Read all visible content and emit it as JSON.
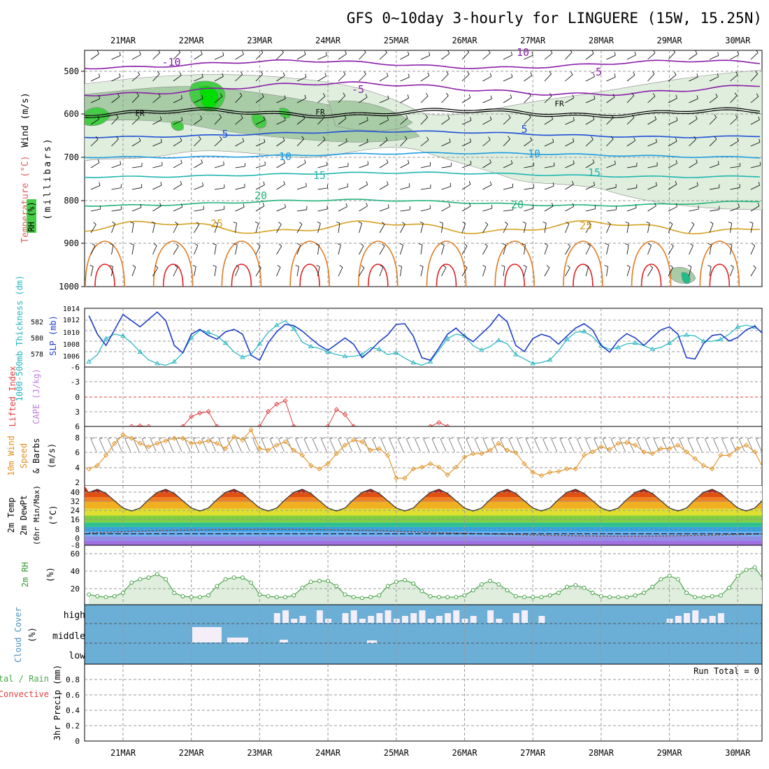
{
  "title": "GFS 0~10day 3-hourly for LINGUERE (15W, 15.25N)",
  "dates": [
    "21MAR",
    "22MAR",
    "23MAR",
    "24MAR",
    "25MAR",
    "26MAR",
    "27MAR",
    "28MAR",
    "29MAR",
    "30MAR"
  ],
  "colors": {
    "wind_barb": "#000000",
    "rh_light": "#dfeedd",
    "rh_mid": "#a8cca6",
    "rh_dark": "#7aa67a",
    "rh_green": "#44cc44",
    "rh_bright": "#00dd00",
    "freezing": "#000000",
    "temp_m10": "#8a1ea8",
    "temp_m5": "#8a1ea8",
    "temp_5": "#1e4fd6",
    "temp_10": "#1e9be0",
    "temp_15": "#20b6b0",
    "temp_20": "#22b27a",
    "temp_25": "#d4a020",
    "temp_30": "#e07a20",
    "temp_35": "#e02020",
    "slp": "#1f3fc4",
    "thickness": "#22b4c0",
    "lifted": "#e04040",
    "cape": "#c080e0",
    "wind10": "#e09020",
    "dewpt": "#8b4a4a",
    "rh2m": "#339933",
    "cloud_fill": "#6baed6",
    "cloud_clear": "#f3eef7"
  },
  "panels": {
    "upper": {
      "ylabel_rh": "RH (%)",
      "ylabel_temp": "Temperature (°C)",
      "ylabel_wind": "Wind (m/s)",
      "ylabel_mb": "(millibars)",
      "ticks": [
        "500",
        "600",
        "700",
        "800",
        "900",
        "1000"
      ],
      "contour_labels": [
        {
          "x": "21.6",
          "text": "-10"
        },
        {
          "x": "26.9",
          "text": "10"
        },
        {
          "x": "23.4",
          "text": "-5"
        },
        {
          "x": "27.9",
          "text": "-5"
        },
        {
          "x": "21.0",
          "text": "FR"
        },
        {
          "x": "23.8",
          "text": "FR"
        },
        {
          "x": "27.4",
          "text": "FR"
        },
        {
          "x": "22.5",
          "text": "5"
        },
        {
          "x": "26.8",
          "text": "5"
        },
        {
          "x": "22.9",
          "text": "10"
        },
        {
          "x": "27.0",
          "text": "10"
        },
        {
          "x": "23.3",
          "text": "15"
        },
        {
          "x": "27.8",
          "text": "15"
        },
        {
          "x": "23.0",
          "text": "20"
        },
        {
          "x": "27.7",
          "text": "20"
        },
        {
          "x": "22.3",
          "text": "25"
        },
        {
          "x": "27.7",
          "text": "25"
        }
      ]
    },
    "slp": {
      "ylabel_thick": "1000-500mb Thickness (dm)",
      "ylabel_slp": "SLP (mb)",
      "ticks_left": [
        "582",
        "580",
        "578"
      ],
      "ticks_right": [
        "1014",
        "1012",
        "1010",
        "1008",
        "1006"
      ]
    },
    "cape": {
      "ylabel_li": "Lifted Index",
      "ylabel_cape": "CAPE (J/kg)",
      "ticks": [
        "-6",
        "-3",
        "0",
        "3",
        "6"
      ]
    },
    "wind10": {
      "ylabel1": "10m Wind",
      "ylabel2": "Speed",
      "ylabel3": "& Barbs",
      "ylabel_units": "(m/s)",
      "ticks": [
        "8",
        "6",
        "4",
        "2"
      ]
    },
    "temp": {
      "ylabel1": "2m Temp",
      "ylabel2": "2m DewPt",
      "ylabel3": "(6hr Min/Max)",
      "ylabel_units": "(°C)",
      "ticks": [
        "40",
        "32",
        "24",
        "16",
        "8",
        "0",
        "-8"
      ]
    },
    "rh": {
      "ylabel": "2m RH",
      "ylabel_units": "(%)",
      "ticks": [
        "60",
        "40",
        "20"
      ]
    },
    "cloud": {
      "ylabel": "Cloud Cover",
      "ylabel_units": "(%)",
      "ticks": [
        "high",
        "middle",
        "low"
      ]
    },
    "precip": {
      "ylabel1": "Total / Rain",
      "ylabel2": "Convective",
      "ylabel3": "3hr Precip (mm)",
      "ticks": [
        "0.8",
        "0.6",
        "0.4",
        "0.2",
        "0"
      ],
      "run_total": "Run Total = 0"
    }
  },
  "chart_data": [
    {
      "type": "line",
      "name": "slp",
      "x_start": "2025-03-20T12:00",
      "step_hours": 3,
      "ylim": [
        1004.5,
        1014
      ],
      "values": [
        1012.8,
        1009.8,
        1008.0,
        1010.5,
        1013.0,
        1012.0,
        1011.0,
        1012.2,
        1013.4,
        1012.0,
        1008.0,
        1006.8,
        1009.8,
        1010.6,
        1009.6,
        1009.0,
        1010.2,
        1010.6,
        1009.8,
        1006.4,
        1005.6,
        1008.4,
        1010.2,
        1011.4,
        1011.2,
        1010.3,
        1009.1,
        1008.0,
        1007.2,
        1008.2,
        1009.2,
        1008.2,
        1006.0,
        1007.2,
        1008.6,
        1009.7,
        1011.4,
        1011.5,
        1009.5,
        1006.0,
        1005.6,
        1007.6,
        1009.8,
        1010.8,
        1009.5,
        1008.6,
        1009.9,
        1011.2,
        1013.0,
        1011.8,
        1008.0,
        1007.0,
        1009.1,
        1009.8,
        1009.4,
        1008.2,
        1009.5,
        1010.8,
        1011.5,
        1010.5,
        1008.0,
        1006.9,
        1008.8,
        1009.9,
        1009.2,
        1008.0,
        1009.3,
        1010.5,
        1011.0,
        1009.8,
        1006.0,
        1005.8,
        1008.3,
        1009.6,
        1009.8,
        1008.7,
        1009.3,
        1010.5,
        1011.1,
        1009.8,
        1006.0,
        1005.9,
        1008.3,
        1010.0,
        1009.5,
        1008.4,
        1009.0,
        1010.1,
        1010.4,
        1009.0,
        1006.1,
        1008.0,
        1009.6,
        1008.6,
        1007.6,
        1006.5,
        1005.6,
        1007.6,
        1009.4,
        1009.8,
        1008.7,
        1007.8,
        1008.3
      ]
    },
    {
      "type": "line",
      "name": "thickness",
      "x_start": "2025-03-20T12:00",
      "step_hours": 3,
      "ylim": [
        576.6,
        583.2
      ],
      "values": [
        577.2,
        578.0,
        579.8,
        580.3,
        580.1,
        579.3,
        578.3,
        577.4,
        577.0,
        576.8,
        577.2,
        578.2,
        579.9,
        580.7,
        580.5,
        580.1,
        579.3,
        578.3,
        577.7,
        578.0,
        579.2,
        580.5,
        581.3,
        581.8,
        580.9,
        579.4,
        578.9,
        578.7,
        578.3,
        578.0,
        577.8,
        577.8,
        578.0,
        578.8,
        578.6,
        578.0,
        578.2,
        577.6,
        577.1,
        576.8,
        577.2,
        578.5,
        579.8,
        580.3,
        580.1,
        579.0,
        578.5,
        578.9,
        579.6,
        579.2,
        578.0,
        577.5,
        577.0,
        577.1,
        577.4,
        578.4,
        579.7,
        580.5,
        580.6,
        580.0,
        579.0,
        578.6,
        578.8,
        579.2,
        579.3,
        579.0,
        578.6,
        578.8,
        579.3,
        580.0,
        580.2,
        580.1,
        579.5,
        579.5,
        579.7,
        580.3,
        581.1,
        581.3,
        581.1,
        580.4,
        580.1,
        579.8,
        579.4,
        578.5,
        578.4,
        578.8,
        579.5,
        580.1,
        580.5,
        581.3,
        581.7,
        581.6,
        580.6,
        579.3,
        578.5,
        578.1,
        578.5,
        579.8,
        581.4,
        582.3,
        582.1,
        581.0,
        579.7,
        579.2
      ]
    },
    {
      "type": "line",
      "name": "lifted_index",
      "x_start": "2025-03-20T12:00",
      "step_hours": 3,
      "ylim": [
        6,
        -6
      ],
      "values": [
        null,
        null,
        null,
        null,
        null,
        6,
        5.9,
        6.0,
        null,
        null,
        null,
        6,
        4.0,
        3.3,
        3.0,
        6.0,
        null,
        null,
        null,
        null,
        6,
        3.0,
        1.5,
        0.8,
        6.0,
        null,
        null,
        null,
        6,
        2.6,
        3.6,
        6.0,
        null,
        null,
        null,
        null,
        null,
        null,
        null,
        null,
        6,
        5.2,
        6.0,
        null
      ]
    },
    {
      "type": "line",
      "name": "wind10m_speed",
      "x_start": "2025-03-20T12:00",
      "step_hours": 3,
      "ylim": [
        2,
        9
      ],
      "values": [
        4.0,
        4.4,
        5.6,
        7.0,
        8.0,
        7.6,
        7.0,
        6.6,
        7.0,
        7.3,
        7.6,
        7.6,
        7.0,
        7.1,
        7.3,
        7.0,
        6.4,
        7.8,
        7.4,
        8.6,
        6.4,
        6.2,
        6.8,
        7.2,
        6.2,
        5.6,
        4.4,
        4.0,
        4.6,
        5.8,
        6.8,
        7.4,
        7.2,
        6.2,
        6.4,
        5.6,
        2.9,
        2.9,
        4.0,
        4.2,
        4.6,
        4.2,
        3.3,
        4.2,
        5.4,
        5.8,
        5.8,
        6.2,
        7.0,
        6.2,
        5.9,
        4.6,
        3.6,
        3.2,
        3.6,
        3.7,
        4.0,
        4.0,
        5.6,
        6.0,
        6.6,
        6.3,
        7.0,
        7.1,
        6.8,
        6.0,
        5.8,
        6.4,
        6.4,
        6.8,
        6.0,
        5.2,
        4.4,
        4.0,
        5.6,
        5.6,
        6.4,
        6.8,
        6.0,
        4.0,
        2.5,
        3.1,
        4.6,
        8.4,
        7.4,
        7.0,
        8.0,
        7.2,
        6.8,
        6.0,
        4.8,
        4.4,
        4.6,
        4.8,
        6.0,
        6.6,
        7.0,
        6.4,
        5.6,
        4.8,
        4.4
      ]
    },
    {
      "type": "line",
      "name": "rh2m",
      "x_start": "2025-03-20T12:00",
      "step_hours": 3,
      "ylim": [
        0,
        70
      ],
      "values": [
        12,
        10,
        9,
        10,
        14,
        26,
        30,
        32,
        36,
        30,
        14,
        10,
        9,
        9,
        11,
        22,
        30,
        32,
        32,
        26,
        12,
        10,
        9,
        9,
        11,
        20,
        27,
        28,
        28,
        22,
        12,
        9,
        8,
        9,
        11,
        22,
        27,
        29,
        25,
        16,
        10,
        9,
        9,
        9,
        11,
        17,
        24,
        28,
        24,
        17,
        10,
        9,
        9,
        9,
        11,
        14,
        21,
        23,
        20,
        14,
        10,
        9,
        9,
        9,
        11,
        14,
        21,
        30,
        34,
        30,
        14,
        9,
        9,
        10,
        11,
        20,
        34,
        41,
        44,
        30,
        13,
        10,
        9,
        10,
        24,
        48,
        64,
        70,
        54,
        25,
        12,
        9,
        9,
        10,
        33,
        35,
        33,
        33,
        34
      ]
    },
    {
      "type": "table",
      "name": "cloud_cover",
      "columns": [
        "hour_index",
        "high",
        "middle"
      ],
      "high_clear_cols": [
        22,
        23,
        24,
        25,
        27,
        28,
        30,
        31,
        32,
        33,
        34,
        35,
        36,
        37,
        38,
        39,
        40,
        41,
        42,
        43,
        44,
        45,
        47,
        48,
        50,
        51,
        53,
        68,
        69,
        70,
        71,
        72,
        73,
        74,
        85,
        86,
        95,
        96
      ]
    },
    {
      "type": "bar",
      "name": "precip_3hr",
      "ylim": [
        0,
        1
      ],
      "values": []
    }
  ]
}
